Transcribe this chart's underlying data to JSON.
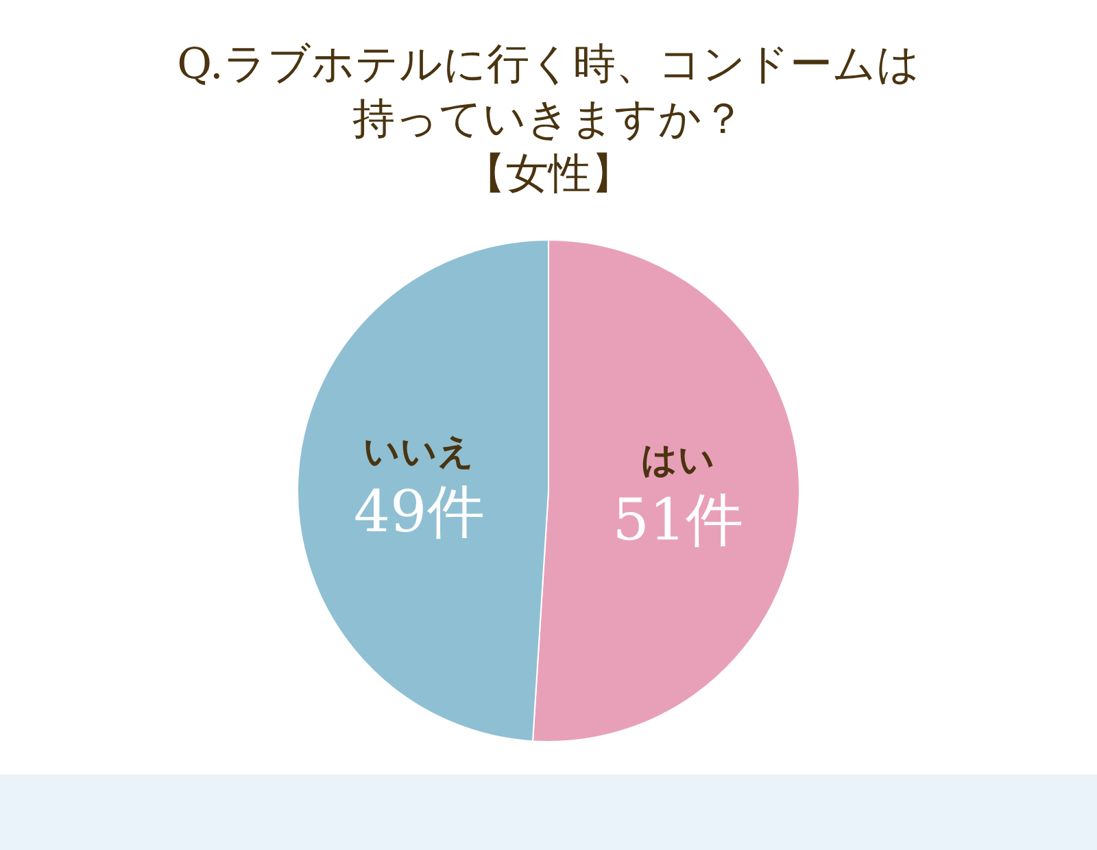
{
  "chart_data": {
    "type": "pie",
    "title": "Q.ラブホテルに行く時、コンドームは持っていきますか？",
    "subtitle": "【女性】",
    "categories": [
      "はい",
      "いいえ"
    ],
    "values": [
      51,
      49
    ],
    "value_labels": [
      "51件",
      "49件"
    ],
    "colors": [
      "#e8a0b8",
      "#8fbfd3"
    ],
    "legend": false
  }
}
